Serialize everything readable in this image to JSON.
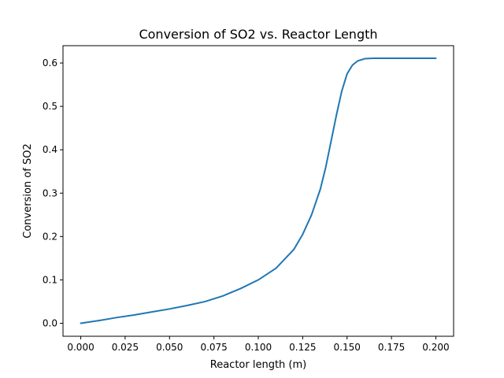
{
  "chart_data": {
    "type": "line",
    "title": "Conversion of SO2 vs. Reactor Length",
    "xlabel": "Reactor length (m)",
    "ylabel": "Conversion of SO2",
    "xlim": [
      -0.01,
      0.21
    ],
    "ylim": [
      -0.03,
      0.64
    ],
    "xticks": [
      0.0,
      0.025,
      0.05,
      0.075,
      0.1,
      0.125,
      0.15,
      0.175,
      0.2
    ],
    "xtick_labels": [
      "0.000",
      "0.025",
      "0.050",
      "0.075",
      "0.100",
      "0.125",
      "0.150",
      "0.175",
      "0.200"
    ],
    "yticks": [
      0.0,
      0.1,
      0.2,
      0.3,
      0.4,
      0.5,
      0.6
    ],
    "ytick_labels": [
      "0.0",
      "0.1",
      "0.2",
      "0.3",
      "0.4",
      "0.5",
      "0.6"
    ],
    "grid": false,
    "series": [
      {
        "color": "#1f77b4",
        "x": [
          0.0,
          0.01,
          0.02,
          0.03,
          0.04,
          0.05,
          0.06,
          0.07,
          0.08,
          0.09,
          0.1,
          0.11,
          0.12,
          0.125,
          0.13,
          0.135,
          0.138,
          0.141,
          0.144,
          0.147,
          0.15,
          0.153,
          0.156,
          0.16,
          0.165,
          0.17,
          0.18,
          0.19,
          0.2
        ],
        "y": [
          0.0,
          0.006,
          0.013,
          0.019,
          0.026,
          0.033,
          0.041,
          0.05,
          0.063,
          0.08,
          0.1,
          0.127,
          0.17,
          0.205,
          0.25,
          0.31,
          0.36,
          0.42,
          0.48,
          0.535,
          0.575,
          0.595,
          0.605,
          0.61,
          0.611,
          0.611,
          0.611,
          0.611,
          0.611
        ]
      }
    ]
  }
}
